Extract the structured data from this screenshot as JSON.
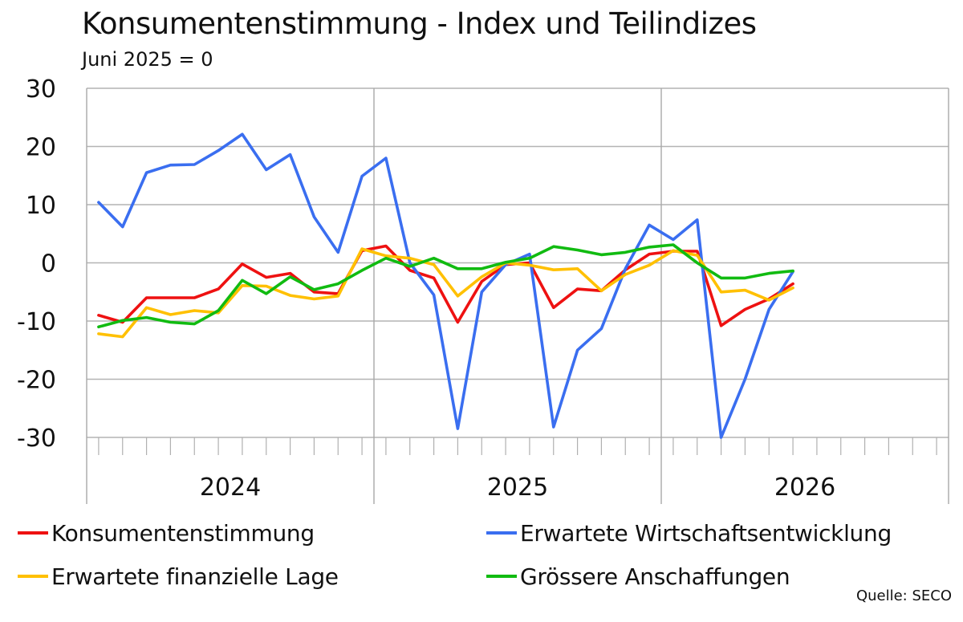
{
  "title": "Konsumentenstimmung - Index und Teilindizes",
  "subtitle": "Juni 2025 = 0",
  "source": "Quelle: SECO",
  "chart_data": {
    "type": "line",
    "x_labels": [
      "2024",
      "2025",
      "2026"
    ],
    "ylim": [
      -30,
      30
    ],
    "yticks": [
      "30",
      "20",
      "10",
      "0",
      "-10",
      "-20",
      "-30"
    ],
    "grid": "vertical lines at year boundaries, horizontal line at each y tick",
    "legend_position": "bottom",
    "months_per_year": 12,
    "series": [
      {
        "name": "Konsumentenstimmung",
        "color": "#ee1111",
        "values": [
          -9,
          -10.2,
          -6,
          -6,
          -6,
          -4.5,
          -0.2,
          -2.5,
          -1.8,
          -5,
          -5.3,
          2.1,
          2.9,
          -1.3,
          -2.6,
          -10.2,
          -3.2,
          -0.3,
          0,
          -7.7,
          -4.5,
          -4.8,
          -1.2,
          1.5,
          2,
          2,
          -10.8,
          -8,
          -6.2,
          -3.6
        ]
      },
      {
        "name": "Erwartete Wirtschaftsentwicklung",
        "color": "#3a6ef0",
        "values": [
          10.4,
          6.2,
          15.5,
          16.8,
          16.9,
          19.3,
          22.1,
          16,
          18.6,
          7.9,
          1.8,
          14.9,
          18,
          0,
          -5.5,
          -28.5,
          -5,
          -0.3,
          1.5,
          -28.2,
          -15,
          -11.3,
          -1,
          6.5,
          4,
          7.4,
          -30,
          -20,
          -8,
          -1.5
        ]
      },
      {
        "name": "Erwartete finanzielle Lage",
        "color": "#ffc000",
        "values": [
          -12.2,
          -12.7,
          -7.7,
          -8.9,
          -8.2,
          -8.6,
          -3.9,
          -4,
          -5.6,
          -6.2,
          -5.7,
          2.4,
          1.2,
          0.8,
          -0.3,
          -5.7,
          -2.4,
          0,
          -0.4,
          -1.2,
          -1,
          -4.8,
          -2,
          -0.4,
          2.1,
          1.3,
          -5,
          -4.7,
          -6.4,
          -4.3
        ]
      },
      {
        "name": "Grössere Anschaffungen",
        "color": "#11bb11",
        "values": [
          -11,
          -9.9,
          -9.4,
          -10.2,
          -10.5,
          -8.2,
          -3,
          -5.3,
          -2.4,
          -4.6,
          -3.6,
          -1.3,
          0.8,
          -0.6,
          0.8,
          -1,
          -1,
          0.1,
          0.8,
          2.8,
          2.2,
          1.4,
          1.8,
          2.7,
          3.1,
          0,
          -2.6,
          -2.6,
          -1.8,
          -1.4
        ]
      }
    ]
  }
}
